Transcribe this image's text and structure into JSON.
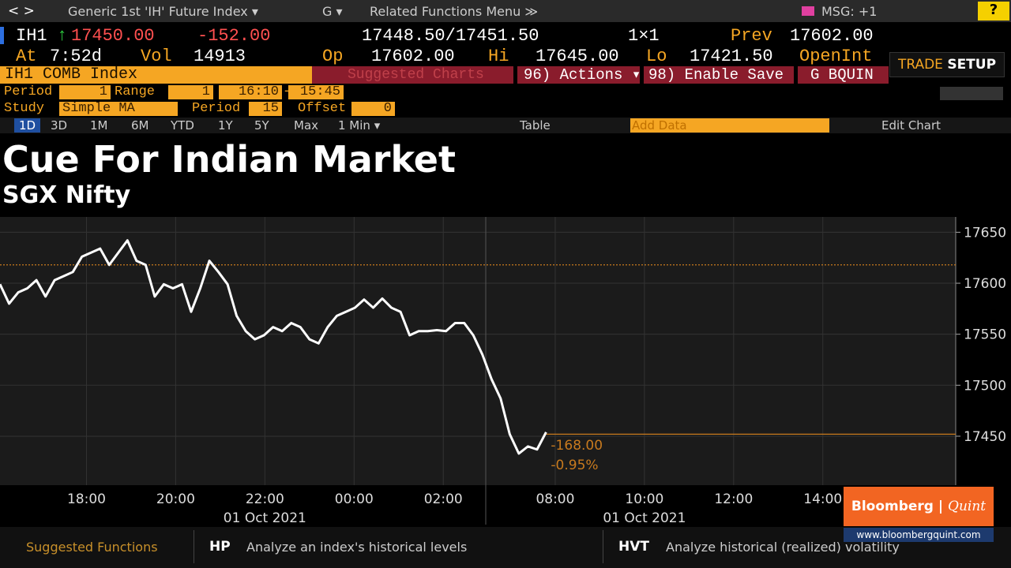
{
  "toolbar": {
    "nav": "<  >",
    "security": "Generic 1st 'IH' Future Index ▾",
    "g": "G ▾",
    "menu": "Related Functions Menu ≫",
    "msg": "MSG: +1",
    "help": "?"
  },
  "quote": {
    "ticker": "IH1",
    "arrow": "↑",
    "last": "17450.00",
    "change": "-152.00",
    "bid_ask": "17448.50/17451.50",
    "size": "1×1",
    "prev_label": "Prev",
    "prev": "17602.00",
    "at_label": "At",
    "time": "7:52d",
    "vol_label": "Vol",
    "vol": "14913",
    "op_label": "Op",
    "op": "17602.00",
    "hi_label": "Hi",
    "hi": "17645.00",
    "lo_label": "Lo",
    "lo": "17421.50",
    "oi_label": "OpenInt"
  },
  "trade": {
    "a": "TRADE",
    "b": "SETUP"
  },
  "bar": {
    "security": "IH1 COMB Index",
    "suggested": "Suggested Charts",
    "actions": "96) Actions ▾",
    "save": "98) Enable Save",
    "user": "G BQUIN"
  },
  "settings": {
    "period_label": "Period",
    "period": "1",
    "range_label": "Range",
    "range": "1",
    "start": "16:10",
    "dash": "-",
    "end": "15:45",
    "study_label": "Study",
    "study": "Simple MA",
    "speriod_label": "Period",
    "speriod": "15",
    "offset_label": "Offset",
    "offset": "0"
  },
  "range_buttons": [
    "1D",
    "3D",
    "1M",
    "6M",
    "YTD",
    "1Y",
    "5Y",
    "Max",
    "1 Min ▾"
  ],
  "chart_tools": {
    "table": "Table",
    "add": "Add Data",
    "edit": "Edit Chart"
  },
  "heading": {
    "title": "Cue For Indian Market",
    "subtitle": "SGX Nifty"
  },
  "chart_data": {
    "type": "line",
    "series": [
      {
        "name": "SGX Nifty",
        "color": "#ffffff",
        "values": [
          17599,
          17580,
          17591,
          17595,
          17603,
          17587,
          17603,
          17607,
          17611,
          17626,
          17630,
          17634,
          17618,
          17630,
          17642,
          17622,
          17618,
          17587,
          17599,
          17595,
          17599,
          17572,
          17595,
          17622,
          17611,
          17599,
          17568,
          17553,
          17545,
          17549,
          17557,
          17553,
          17561,
          17557,
          17545,
          17541,
          17557,
          17568,
          17572,
          17576,
          17584,
          17576,
          17585,
          17576,
          17572,
          17549,
          17553,
          17553,
          17554,
          17553,
          17561,
          17561,
          17549,
          17530,
          17506,
          17487,
          17452,
          17433,
          17440,
          17437,
          17454
        ]
      }
    ],
    "xlim": [
      0,
      105
    ],
    "xticks": [
      {
        "value": 9.5,
        "label": "18:00"
      },
      {
        "value": 19.3,
        "label": "20:00"
      },
      {
        "value": 29.1,
        "label": "22:00"
      },
      {
        "value": 38.9,
        "label": "00:00"
      },
      {
        "value": 48.7,
        "label": "02:00"
      },
      {
        "value": 61,
        "label": "08:00"
      },
      {
        "value": 70.8,
        "label": "10:00"
      },
      {
        "value": 80.6,
        "label": "12:00"
      },
      {
        "value": 90.4,
        "label": "14:00"
      }
    ],
    "date_labels": [
      "01 Oct 2021",
      "01 Oct 2021"
    ],
    "ylim": [
      17402,
      17665
    ],
    "yticks": [
      17450,
      17500,
      17550,
      17600,
      17650
    ],
    "reference_lines": [
      17618,
      17452
    ],
    "reference_color": "#c87a1e",
    "annotations": [
      "-168.00",
      "-0.95%"
    ],
    "grid": true
  },
  "footer": {
    "suggested": "Suggested Functions",
    "hp": "HP",
    "hp_text": "Analyze an index's historical levels",
    "hvt": "HVT",
    "hvt_text": "Analyze historical (realized) volatility"
  },
  "logo": {
    "a": "Bloomberg",
    "b": "Quint",
    "url": "www.bloombergquint.com"
  }
}
